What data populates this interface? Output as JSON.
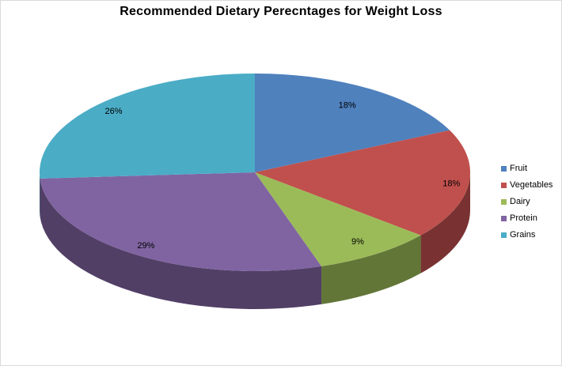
{
  "chart_data": {
    "type": "pie",
    "style": "3d-pie",
    "title": "Recommended Dietary Perecntages for Weight Loss",
    "labels": [
      "Fruit",
      "Vegetables",
      "Dairy",
      "Protein",
      "Grains"
    ],
    "values": [
      18,
      18,
      9,
      29,
      26
    ],
    "percent_labels": [
      "18%",
      "18%",
      "9%",
      "29%",
      "26%"
    ],
    "colors": [
      "#4F81BD",
      "#C0504D",
      "#9BBB59",
      "#8064A2",
      "#4BACC6"
    ],
    "legend_position": "right",
    "background": "#FFFFFF",
    "start_angle_deg": 0,
    "direction": "clockwise"
  }
}
